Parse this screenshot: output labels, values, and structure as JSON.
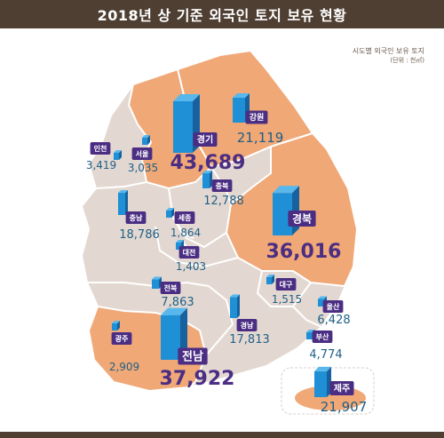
{
  "title": "2018년 상 기준 외국인 토지 보유 현황",
  "note": {
    "line1": "시도별 외국인 보유 토지",
    "line2": "(단위 : 천㎡)"
  },
  "chart_data": {
    "type": "bar",
    "categories": [
      "경기",
      "경북",
      "전남",
      "제주",
      "강원",
      "전북",
      "경남",
      "충남",
      "충북",
      "울산",
      "부산",
      "인천",
      "서울",
      "광주",
      "세종",
      "대구",
      "대전"
    ],
    "values": [
      43689,
      36016,
      37922,
      21907,
      21119,
      7863,
      17813,
      18786,
      12788,
      6428,
      4774,
      3419,
      3035,
      2909,
      1864,
      1515,
      1403
    ],
    "value_labels": [
      "43,689",
      "36,016",
      "37,922",
      "21,907",
      "21,119",
      "7,863",
      "17,813",
      "18,786",
      "12,788",
      "6,428",
      "4,774",
      "3,419",
      "3,035",
      "2,909",
      "1,864",
      "1,515",
      "1,403"
    ],
    "highlighted": [
      "경기",
      "경북",
      "전남"
    ],
    "colors": {
      "bar_front": "#1f8fd6",
      "bar_side": "#17629e",
      "bar_top": "#58b8ec",
      "badge": "#4b2e83",
      "value_text": "#1f5f86",
      "map_orange": "#f0a876",
      "map_grey": "#e3d8d1",
      "border": "#ffffff"
    }
  }
}
